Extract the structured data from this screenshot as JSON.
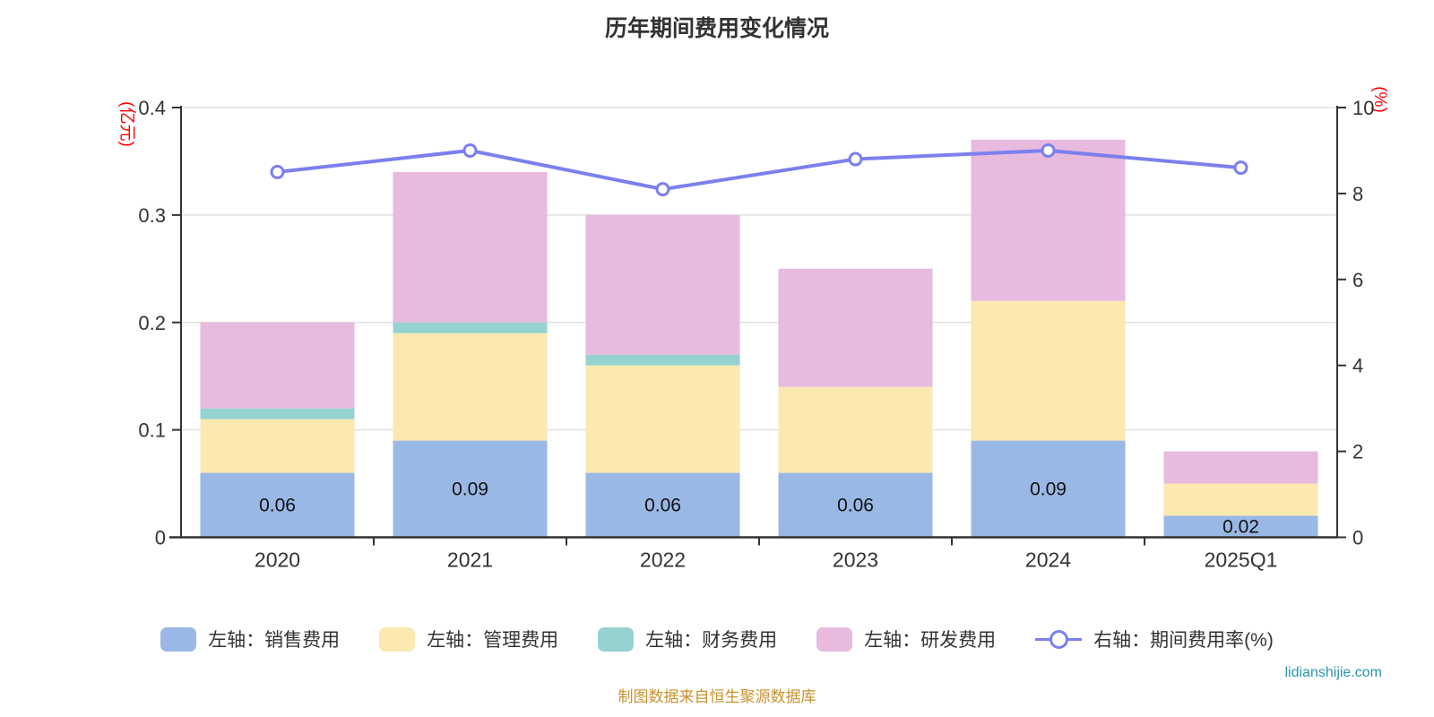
{
  "title": "历年期间费用变化情况",
  "left_axis": {
    "unit": "(亿元)",
    "unit_color": "#ff0000",
    "min": 0,
    "max": 0.4,
    "ticks": [
      0.4,
      0.3,
      0.2,
      0.1,
      0
    ]
  },
  "right_axis": {
    "unit": "(%)",
    "unit_color": "#ff0000",
    "min": 0,
    "max": 10,
    "ticks": [
      10,
      8,
      6,
      4,
      2,
      0
    ]
  },
  "chart_data": {
    "type": "bar",
    "subtype": "stacked-bar-with-line",
    "categories": [
      "2020",
      "2021",
      "2022",
      "2023",
      "2024",
      "2025Q1"
    ],
    "series": [
      {
        "name": "左轴：销售费用",
        "type": "bar",
        "axis": "left",
        "color": "#99b8e5",
        "values": [
          0.06,
          0.09,
          0.06,
          0.06,
          0.09,
          0.02
        ],
        "labels": [
          "0.06",
          "0.09",
          "0.06",
          "0.06",
          "0.09",
          "0.02"
        ]
      },
      {
        "name": "左轴：管理费用",
        "type": "bar",
        "axis": "left",
        "color": "#fbe9b1",
        "values": [
          0.05,
          0.1,
          0.1,
          0.08,
          0.13,
          0.03
        ]
      },
      {
        "name": "左轴：财务费用",
        "type": "bar",
        "axis": "left",
        "color": "#95d2d0",
        "values": [
          0.01,
          0.01,
          0.01,
          0,
          0,
          0
        ]
      },
      {
        "name": "左轴：研发费用",
        "type": "bar",
        "axis": "left",
        "color": "#e7bade",
        "values": [
          0.08,
          0.14,
          0.13,
          0.11,
          0.15,
          0.03
        ]
      },
      {
        "name": "右轴：期间费用率(%)",
        "type": "line",
        "axis": "right",
        "color": "#7b80ed",
        "values": [
          8.5,
          9.0,
          8.1,
          8.8,
          9.0,
          8.6
        ]
      }
    ],
    "stack_totals": [
      0.2,
      0.34,
      0.3,
      0.25,
      0.37,
      0.08
    ],
    "grid": true,
    "legend_position": "bottom"
  },
  "legend": {
    "items": [
      {
        "label": "左轴：销售费用",
        "type": "bar",
        "color": "#99b8e5"
      },
      {
        "label": "左轴：管理费用",
        "type": "bar",
        "color": "#fbe9b1"
      },
      {
        "label": "左轴：财务费用",
        "type": "bar",
        "color": "#95d2d0"
      },
      {
        "label": "左轴：研发费用",
        "type": "bar",
        "color": "#e7bade"
      },
      {
        "label": "右轴：期间费用率(%)",
        "type": "line",
        "color": "#7b80ed"
      }
    ]
  },
  "footer": {
    "source_note": "制图数据来自恒生聚源数据库",
    "watermark": "lidianshijie.com"
  },
  "colors": {
    "axis_line": "#333333",
    "grid_line": "#e0e0e0",
    "tick_label": "#333333",
    "bar_value_label": "#111111",
    "title": "#333333"
  }
}
